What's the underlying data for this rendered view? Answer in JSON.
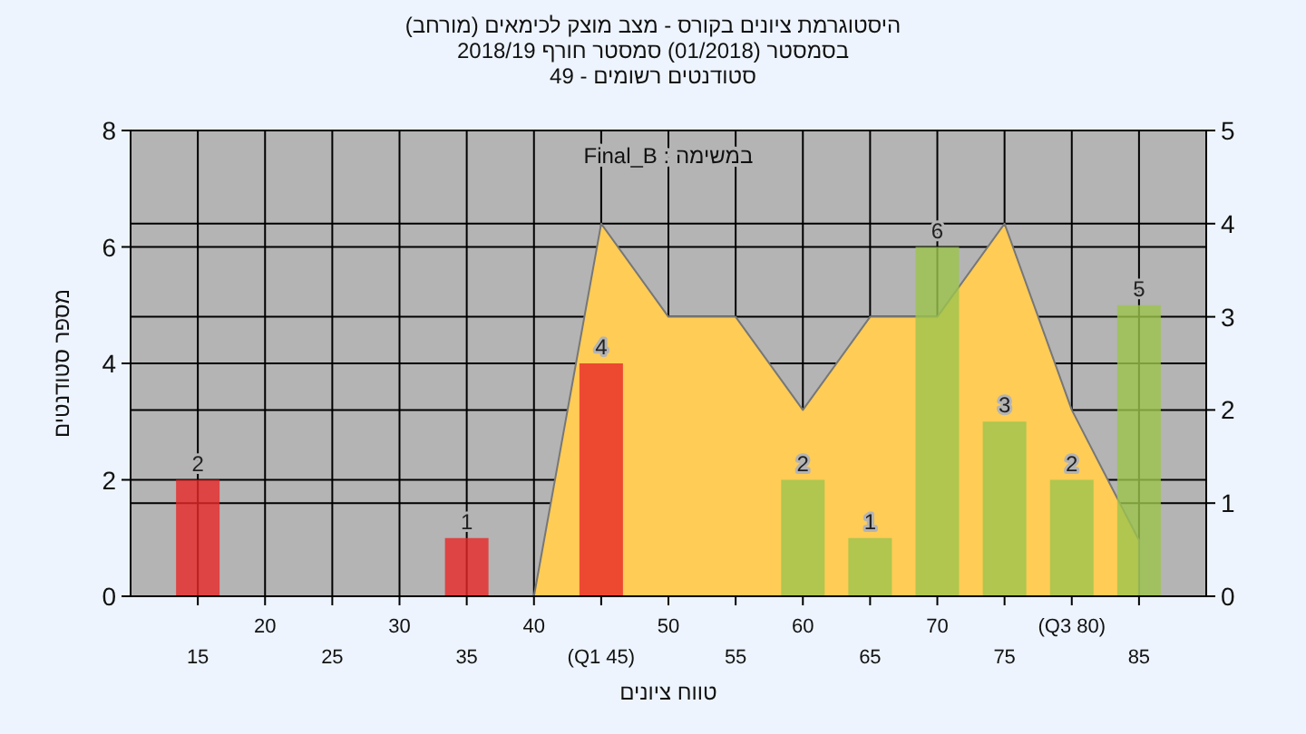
{
  "chart_data": {
    "type": "bar",
    "title": "היסטוגרמת ציונים בקורס - מצב מוצק לכימאים (מורחב)",
    "subtitle": "בסמסטר (01/2018) סמסטר חורף 2018/19\nסטודנטים רשומים - 49",
    "xlabel": "טווח ציונים",
    "ylabel": "מספר סטודנטים",
    "annotations": [
      "במשימה : Final_B"
    ],
    "categories": [
      "15",
      "20",
      "25",
      "30",
      "35",
      "40",
      "(Q1 45)",
      "50",
      "55",
      "60",
      "65",
      "70",
      "75",
      "(Q3 80)",
      "85"
    ],
    "series": [
      {
        "colors": [
          "#e82828",
          "#e82828",
          "#e82828",
          "#e82828",
          "#e82828",
          "#e82828",
          "#e82828",
          "#9cc44c",
          "#9cc44c",
          "#9cc44c",
          "#9cc44c",
          "#9cc44c",
          "#9cc44c",
          "#9cc44c",
          "#9cc44c"
        ],
        "values": [
          2,
          0,
          0,
          0,
          1,
          0,
          4,
          0,
          0,
          2,
          1,
          6,
          3,
          2,
          5
        ],
        "value_labels": [
          "2",
          null,
          null,
          null,
          "1",
          null,
          "4",
          null,
          null,
          "2",
          "1",
          "6",
          "3",
          "2",
          "5"
        ]
      },
      {
        "type": "area",
        "axis": "y2",
        "color": "#ffcc55",
        "values": [
          null,
          null,
          null,
          null,
          null,
          0,
          4,
          3,
          3,
          2,
          3,
          3,
          4,
          2,
          0.6
        ]
      }
    ],
    "ylim": [
      0,
      8
    ],
    "yticks": [
      0,
      2,
      4,
      6,
      8
    ],
    "y2lim": [
      0,
      5
    ],
    "y2ticks": [
      0,
      1,
      2,
      3,
      4,
      5
    ],
    "grid": true
  }
}
